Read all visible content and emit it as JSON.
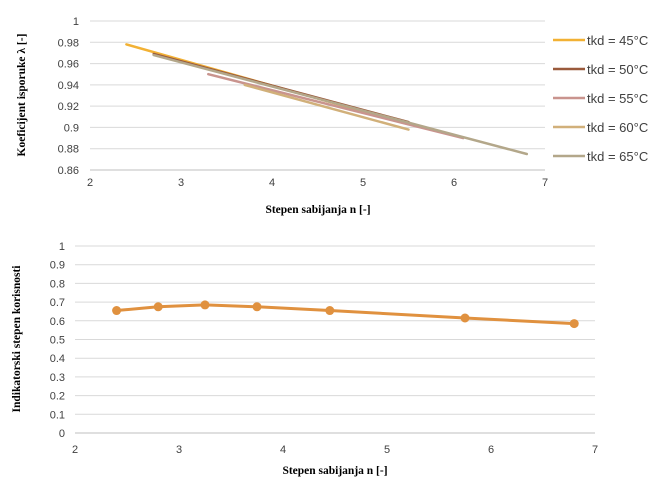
{
  "chart_data": [
    {
      "type": "line",
      "xlabel": "Stepen sabijanja n [-]",
      "ylabel": "Koeficijent isporuke λ [-]",
      "xlim": [
        2,
        7
      ],
      "ylim": [
        0.86,
        1.0
      ],
      "xticks": [
        "2",
        "3",
        "4",
        "5",
        "6",
        "7"
      ],
      "yticks": [
        "0.86",
        "0.88",
        "0.9",
        "0.92",
        "0.94",
        "0.96",
        "0.98",
        "1"
      ],
      "grid": true,
      "legend_position": "right",
      "series": [
        {
          "name": "tkd = 45°C",
          "color": "#f2b134",
          "x": [
            2.4,
            5.5
          ],
          "y": [
            0.978,
            0.903
          ]
        },
        {
          "name": "tkd = 50°C",
          "color": "#9a5a3c",
          "x": [
            2.7,
            5.5
          ],
          "y": [
            0.969,
            0.905
          ]
        },
        {
          "name": "tkd = 55°C",
          "color": "#c9948e",
          "x": [
            3.3,
            6.1
          ],
          "y": [
            0.95,
            0.89
          ]
        },
        {
          "name": "tkd = 60°C",
          "color": "#d1b07a",
          "x": [
            3.7,
            5.5
          ],
          "y": [
            0.94,
            0.898
          ]
        },
        {
          "name": "tkd = 65°C",
          "color": "#b3a78a",
          "x": [
            2.7,
            6.8
          ],
          "y": [
            0.968,
            0.875
          ]
        }
      ]
    },
    {
      "type": "line",
      "xlabel": "Stepen sabijanja n [-]",
      "ylabel": "Indikatorski stepen korisnosti",
      "xlim": [
        2,
        7
      ],
      "ylim": [
        0,
        1
      ],
      "xticks": [
        "2",
        "3",
        "4",
        "5",
        "6",
        "7"
      ],
      "yticks": [
        "0",
        "0.1",
        "0.2",
        "0.3",
        "0.4",
        "0.5",
        "0.6",
        "0.7",
        "0.8",
        "0.9",
        "1"
      ],
      "grid": true,
      "series": [
        {
          "color": "#e0913f",
          "x": [
            2.4,
            2.8,
            3.25,
            3.75,
            4.45,
            5.75,
            6.8
          ],
          "y": [
            0.655,
            0.675,
            0.685,
            0.675,
            0.655,
            0.615,
            0.585
          ]
        }
      ]
    }
  ]
}
